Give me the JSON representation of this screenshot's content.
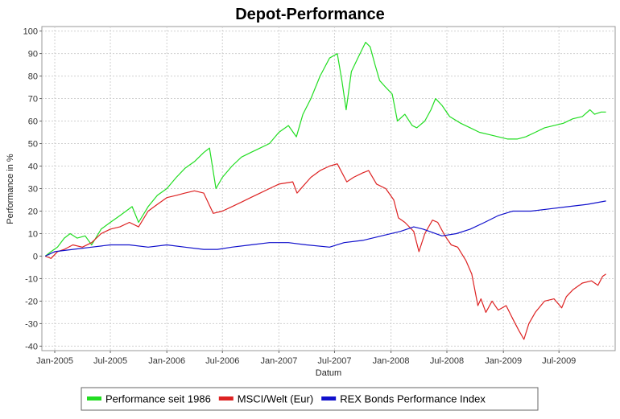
{
  "chart_data": {
    "type": "line",
    "title": "Depot-Performance",
    "xlabel": "Datum",
    "ylabel": "Performance in %",
    "ylim": [
      -42,
      102
    ],
    "xlim": [
      "2004-11-20",
      "2009-12-31"
    ],
    "yticks": [
      100,
      90,
      80,
      70,
      60,
      50,
      40,
      30,
      20,
      10,
      0,
      -10,
      -20,
      -30,
      -40
    ],
    "xticks": [
      {
        "label": "Jan-2005",
        "date": "2005-01-01"
      },
      {
        "label": "Jul-2005",
        "date": "2005-07-01"
      },
      {
        "label": "Jan-2006",
        "date": "2006-01-01"
      },
      {
        "label": "Jul-2006",
        "date": "2006-07-01"
      },
      {
        "label": "Jan-2007",
        "date": "2007-01-01"
      },
      {
        "label": "Jul-2007",
        "date": "2007-07-01"
      },
      {
        "label": "Jan-2008",
        "date": "2008-01-01"
      },
      {
        "label": "Jul-2008",
        "date": "2008-07-01"
      },
      {
        "label": "Jan-2009",
        "date": "2009-01-01"
      },
      {
        "label": "Jul-2009",
        "date": "2009-07-01"
      }
    ],
    "grid": true,
    "legend_position": "bottom",
    "series": [
      {
        "name": "Performance seit 1986",
        "color": "#22dd22",
        "points": [
          [
            "2004-12-01",
            0
          ],
          [
            "2004-12-20",
            2
          ],
          [
            "2005-01-10",
            4
          ],
          [
            "2005-02-01",
            8
          ],
          [
            "2005-02-20",
            10
          ],
          [
            "2005-03-15",
            8
          ],
          [
            "2005-04-10",
            9
          ],
          [
            "2005-05-01",
            5
          ],
          [
            "2005-06-01",
            12
          ],
          [
            "2005-07-01",
            15
          ],
          [
            "2005-08-01",
            18
          ],
          [
            "2005-09-10",
            22
          ],
          [
            "2005-10-01",
            15
          ],
          [
            "2005-11-01",
            22
          ],
          [
            "2005-12-01",
            27
          ],
          [
            "2006-01-01",
            30
          ],
          [
            "2006-02-01",
            35
          ],
          [
            "2006-03-01",
            39
          ],
          [
            "2006-04-01",
            42
          ],
          [
            "2006-05-01",
            46
          ],
          [
            "2006-05-20",
            48
          ],
          [
            "2006-06-10",
            30
          ],
          [
            "2006-07-01",
            35
          ],
          [
            "2006-08-01",
            40
          ],
          [
            "2006-09-01",
            44
          ],
          [
            "2006-10-01",
            46
          ],
          [
            "2006-11-01",
            48
          ],
          [
            "2006-12-01",
            50
          ],
          [
            "2007-01-01",
            55
          ],
          [
            "2007-02-01",
            58
          ],
          [
            "2007-02-27",
            53
          ],
          [
            "2007-03-20",
            63
          ],
          [
            "2007-04-15",
            70
          ],
          [
            "2007-05-15",
            80
          ],
          [
            "2007-06-15",
            88
          ],
          [
            "2007-07-10",
            90
          ],
          [
            "2007-07-25",
            78
          ],
          [
            "2007-08-08",
            65
          ],
          [
            "2007-08-25",
            82
          ],
          [
            "2007-09-15",
            88
          ],
          [
            "2007-10-10",
            95
          ],
          [
            "2007-10-25",
            93
          ],
          [
            "2007-11-10",
            85
          ],
          [
            "2007-11-25",
            78
          ],
          [
            "2007-12-15",
            75
          ],
          [
            "2008-01-05",
            72
          ],
          [
            "2008-01-22",
            60
          ],
          [
            "2008-02-15",
            63
          ],
          [
            "2008-03-10",
            58
          ],
          [
            "2008-03-25",
            57
          ],
          [
            "2008-04-20",
            60
          ],
          [
            "2008-05-10",
            65
          ],
          [
            "2008-05-25",
            70
          ],
          [
            "2008-06-15",
            67
          ],
          [
            "2008-07-10",
            62
          ],
          [
            "2008-08-15",
            59
          ],
          [
            "2008-09-15",
            57
          ],
          [
            "2008-10-15",
            55
          ],
          [
            "2008-11-15",
            54
          ],
          [
            "2008-12-15",
            53
          ],
          [
            "2009-01-15",
            52
          ],
          [
            "2009-02-15",
            52
          ],
          [
            "2009-03-15",
            53
          ],
          [
            "2009-04-15",
            55
          ],
          [
            "2009-05-15",
            57
          ],
          [
            "2009-06-15",
            58
          ],
          [
            "2009-07-15",
            59
          ],
          [
            "2009-08-15",
            61
          ],
          [
            "2009-09-15",
            62
          ],
          [
            "2009-10-10",
            65
          ],
          [
            "2009-10-25",
            63
          ],
          [
            "2009-11-15",
            64
          ],
          [
            "2009-12-01",
            64
          ]
        ]
      },
      {
        "name": "MSCI/Welt (Eur)",
        "color": "#dd2222",
        "points": [
          [
            "2004-12-01",
            0
          ],
          [
            "2004-12-20",
            -1
          ],
          [
            "2005-01-10",
            2
          ],
          [
            "2005-02-01",
            3
          ],
          [
            "2005-03-01",
            5
          ],
          [
            "2005-04-01",
            4
          ],
          [
            "2005-05-01",
            6
          ],
          [
            "2005-06-01",
            10
          ],
          [
            "2005-07-01",
            12
          ],
          [
            "2005-08-01",
            13
          ],
          [
            "2005-09-01",
            15
          ],
          [
            "2005-10-01",
            13
          ],
          [
            "2005-11-01",
            20
          ],
          [
            "2005-12-01",
            23
          ],
          [
            "2006-01-01",
            26
          ],
          [
            "2006-02-01",
            27
          ],
          [
            "2006-03-01",
            28
          ],
          [
            "2006-04-01",
            29
          ],
          [
            "2006-05-01",
            28
          ],
          [
            "2006-06-01",
            19
          ],
          [
            "2006-07-01",
            20
          ],
          [
            "2006-08-01",
            22
          ],
          [
            "2006-09-01",
            24
          ],
          [
            "2006-10-01",
            26
          ],
          [
            "2006-11-01",
            28
          ],
          [
            "2006-12-01",
            30
          ],
          [
            "2007-01-01",
            32
          ],
          [
            "2007-02-15",
            33
          ],
          [
            "2007-03-01",
            28
          ],
          [
            "2007-03-20",
            31
          ],
          [
            "2007-04-15",
            35
          ],
          [
            "2007-05-15",
            38
          ],
          [
            "2007-06-15",
            40
          ],
          [
            "2007-07-10",
            41
          ],
          [
            "2007-08-10",
            33
          ],
          [
            "2007-09-01",
            35
          ],
          [
            "2007-10-01",
            37
          ],
          [
            "2007-10-20",
            38
          ],
          [
            "2007-11-15",
            32
          ],
          [
            "2007-12-15",
            30
          ],
          [
            "2008-01-10",
            25
          ],
          [
            "2008-01-25",
            17
          ],
          [
            "2008-02-15",
            15
          ],
          [
            "2008-03-15",
            11
          ],
          [
            "2008-04-01",
            2
          ],
          [
            "2008-04-20",
            10
          ],
          [
            "2008-05-15",
            16
          ],
          [
            "2008-06-01",
            15
          ],
          [
            "2008-06-25",
            9
          ],
          [
            "2008-07-15",
            5
          ],
          [
            "2008-08-05",
            4
          ],
          [
            "2008-09-01",
            -2
          ],
          [
            "2008-09-20",
            -8
          ],
          [
            "2008-10-10",
            -22
          ],
          [
            "2008-10-20",
            -19
          ],
          [
            "2008-11-05",
            -25
          ],
          [
            "2008-11-25",
            -20
          ],
          [
            "2008-12-15",
            -24
          ],
          [
            "2009-01-10",
            -22
          ],
          [
            "2009-02-01",
            -28
          ],
          [
            "2009-02-20",
            -33
          ],
          [
            "2009-03-09",
            -37
          ],
          [
            "2009-03-25",
            -30
          ],
          [
            "2009-04-15",
            -25
          ],
          [
            "2009-05-15",
            -20
          ],
          [
            "2009-06-15",
            -19
          ],
          [
            "2009-07-10",
            -23
          ],
          [
            "2009-07-25",
            -18
          ],
          [
            "2009-08-15",
            -15
          ],
          [
            "2009-09-15",
            -12
          ],
          [
            "2009-10-15",
            -11
          ],
          [
            "2009-11-05",
            -13
          ],
          [
            "2009-11-20",
            -9
          ],
          [
            "2009-12-01",
            -8
          ]
        ]
      },
      {
        "name": "REX Bonds Performance Index",
        "color": "#1010cc",
        "points": [
          [
            "2004-12-01",
            0
          ],
          [
            "2005-01-01",
            2
          ],
          [
            "2005-03-01",
            3
          ],
          [
            "2005-05-01",
            4
          ],
          [
            "2005-07-01",
            5
          ],
          [
            "2005-09-01",
            5
          ],
          [
            "2005-11-01",
            4
          ],
          [
            "2006-01-01",
            5
          ],
          [
            "2006-03-01",
            4
          ],
          [
            "2006-05-01",
            3
          ],
          [
            "2006-06-15",
            3
          ],
          [
            "2006-08-01",
            4
          ],
          [
            "2006-10-01",
            5
          ],
          [
            "2006-12-01",
            6
          ],
          [
            "2007-02-01",
            6
          ],
          [
            "2007-04-01",
            5
          ],
          [
            "2007-06-15",
            4
          ],
          [
            "2007-08-01",
            6
          ],
          [
            "2007-10-01",
            7
          ],
          [
            "2007-12-01",
            9
          ],
          [
            "2008-02-01",
            11
          ],
          [
            "2008-03-15",
            13
          ],
          [
            "2008-04-15",
            12
          ],
          [
            "2008-06-15",
            9
          ],
          [
            "2008-08-01",
            10
          ],
          [
            "2008-09-15",
            12
          ],
          [
            "2008-11-01",
            15
          ],
          [
            "2008-12-15",
            18
          ],
          [
            "2009-02-01",
            20
          ],
          [
            "2009-04-01",
            20
          ],
          [
            "2009-06-01",
            21
          ],
          [
            "2009-08-01",
            22
          ],
          [
            "2009-10-01",
            23
          ],
          [
            "2009-12-01",
            24.5
          ]
        ]
      }
    ]
  }
}
